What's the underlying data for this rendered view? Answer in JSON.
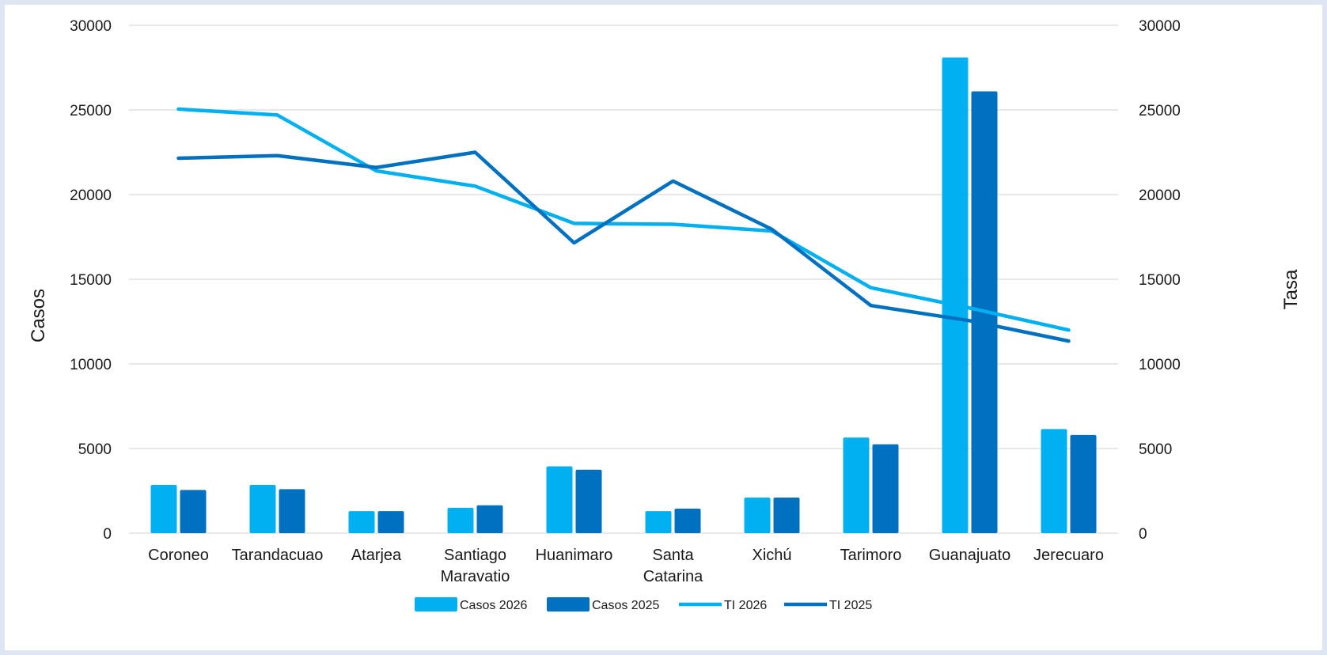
{
  "chart_data": {
    "type": "bar",
    "title": "",
    "ylabel_left": "Casos",
    "ylabel_right": "Tasa",
    "ylim_left": [
      0,
      30000
    ],
    "ylim_right": [
      0,
      30000
    ],
    "yticks": [
      "0",
      "5000",
      "10000",
      "15000",
      "20000",
      "25000",
      "30000"
    ],
    "grid": true,
    "legend_position": "bottom",
    "categories": [
      [
        "Coroneo"
      ],
      [
        "Tarandacuao"
      ],
      [
        "Atarjea"
      ],
      [
        "Santiago",
        "Maravatio"
      ],
      [
        "Huanimaro"
      ],
      [
        "Santa",
        "Catarina"
      ],
      [
        "Xichú"
      ],
      [
        "Tarimoro"
      ],
      [
        "Guanajuato"
      ],
      [
        "Jerecuaro"
      ]
    ],
    "bar_series": [
      {
        "name": "Casos 2026",
        "color": "#00b0f0",
        "values": [
          2850,
          2850,
          1300,
          1500,
          3950,
          1300,
          2100,
          5650,
          28100,
          6150
        ]
      },
      {
        "name": "Casos 2025",
        "color": "#0070c0",
        "values": [
          2550,
          2600,
          1300,
          1650,
          3750,
          1450,
          2100,
          5250,
          26100,
          5800
        ]
      }
    ],
    "line_series": [
      {
        "name": "TI 2026",
        "color": "#00b0f0",
        "values": [
          25050,
          24700,
          21400,
          20500,
          18300,
          18250,
          17850,
          14500,
          13300,
          12000
        ]
      },
      {
        "name": "TI 2025",
        "color": "#0070c0",
        "values": [
          22150,
          22300,
          21600,
          22500,
          17150,
          20800,
          17950,
          13450,
          12550,
          11350
        ]
      }
    ]
  }
}
